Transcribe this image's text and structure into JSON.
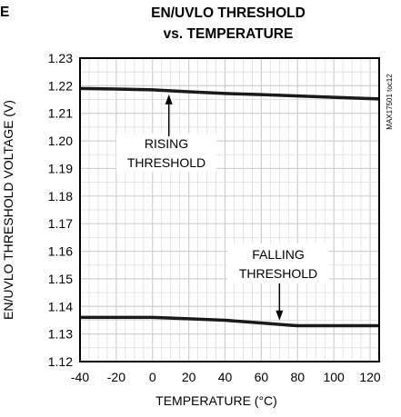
{
  "chart_data": {
    "type": "line",
    "title_line1": "EN/UVLO THRESHOLD",
    "title_line2": "vs. TEMPERATURE",
    "xlabel": "TEMPERATURE (°C)",
    "ylabel": "EN/UVLO THRESHOLD VOLTAGE (V)",
    "xlim": [
      -40,
      125
    ],
    "ylim": [
      1.12,
      1.23
    ],
    "x_ticks": [
      "-40",
      "-20",
      "0",
      "20",
      "40",
      "60",
      "80",
      "100",
      "120"
    ],
    "y_ticks": [
      "1.12",
      "1.13",
      "1.14",
      "1.15",
      "1.16",
      "1.17",
      "1.18",
      "1.19",
      "1.20",
      "1.21",
      "1.22",
      "1.23"
    ],
    "grid": true,
    "series": [
      {
        "name": "RISING THRESHOLD",
        "x": [
          -40,
          -20,
          0,
          20,
          40,
          60,
          80,
          100,
          125
        ],
        "y": [
          1.219,
          1.2188,
          1.2185,
          1.2178,
          1.2172,
          1.2168,
          1.2163,
          1.2158,
          1.2152
        ]
      },
      {
        "name": "FALLING THRESHOLD",
        "x": [
          -40,
          -20,
          0,
          20,
          40,
          60,
          75,
          80,
          100,
          125
        ],
        "y": [
          1.136,
          1.136,
          1.136,
          1.1355,
          1.135,
          1.134,
          1.1332,
          1.133,
          1.133,
          1.133
        ]
      }
    ],
    "annotations": [
      {
        "line1": "RISING",
        "line2": "THRESHOLD",
        "arrow_to": [
          9,
          1.2182
        ]
      },
      {
        "line1": "FALLING",
        "line2": "THRESHOLD",
        "arrow_to": [
          70,
          1.1336
        ]
      }
    ],
    "side_code": "MAX17501 toc12",
    "corner_label": "E",
    "line_color": "#1a1a1a",
    "grid_color": "#dedede"
  }
}
